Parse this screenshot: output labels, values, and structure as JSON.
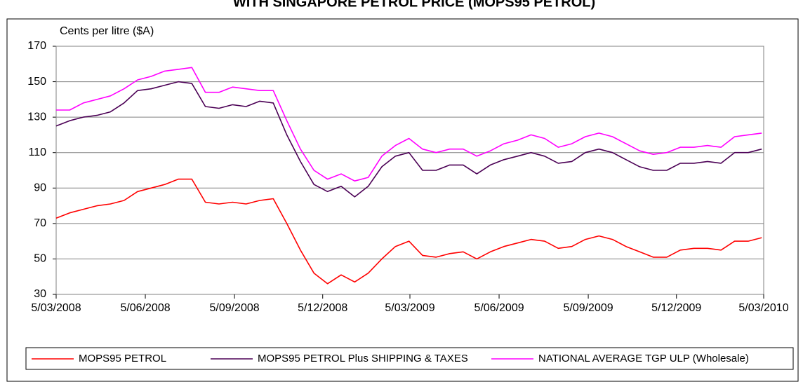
{
  "chart_data": {
    "type": "line",
    "title": "WITH SINGAPORE PETROL PRICE (MOPS95 PETROL)",
    "y_label": "Cents per litre ($A)",
    "x": [
      "2008-03-05",
      "2008-03-19",
      "2008-04-02",
      "2008-04-16",
      "2008-04-30",
      "2008-05-14",
      "2008-05-28",
      "2008-06-11",
      "2008-06-25",
      "2008-07-09",
      "2008-07-23",
      "2008-08-06",
      "2008-08-20",
      "2008-09-03",
      "2008-09-17",
      "2008-10-01",
      "2008-10-15",
      "2008-10-29",
      "2008-11-12",
      "2008-11-26",
      "2008-12-10",
      "2008-12-24",
      "2009-01-07",
      "2009-01-21",
      "2009-02-04",
      "2009-02-18",
      "2009-03-04",
      "2009-03-18",
      "2009-04-01",
      "2009-04-15",
      "2009-04-29",
      "2009-05-13",
      "2009-05-27",
      "2009-06-10",
      "2009-06-24",
      "2009-07-08",
      "2009-07-22",
      "2009-08-05",
      "2009-08-19",
      "2009-09-02",
      "2009-09-16",
      "2009-09-30",
      "2009-10-14",
      "2009-10-28",
      "2009-11-11",
      "2009-11-25",
      "2009-12-09",
      "2009-12-23",
      "2010-01-06",
      "2010-01-20",
      "2010-02-03",
      "2010-02-17",
      "2010-03-03"
    ],
    "series": [
      {
        "name": "MOPS95 PETROL",
        "color": "#ff0000",
        "values": [
          73,
          76,
          78,
          80,
          81,
          83,
          88,
          90,
          92,
          95,
          95,
          82,
          81,
          82,
          81,
          83,
          84,
          70,
          55,
          42,
          36,
          41,
          37,
          42,
          50,
          57,
          60,
          52,
          51,
          53,
          54,
          50,
          54,
          57,
          59,
          61,
          60,
          56,
          57,
          61,
          63,
          61,
          57,
          54,
          51,
          51,
          55,
          56,
          56,
          55,
          60,
          60,
          62
        ]
      },
      {
        "name": "MOPS95 PETROL Plus SHIPPING & TAXES",
        "color": "#4b0055",
        "values": [
          125,
          128,
          130,
          131,
          133,
          138,
          145,
          146,
          148,
          150,
          149,
          136,
          135,
          137,
          136,
          139,
          138,
          120,
          105,
          92,
          88,
          91,
          85,
          91,
          102,
          108,
          110,
          100,
          100,
          103,
          103,
          98,
          103,
          106,
          108,
          110,
          108,
          104,
          105,
          110,
          112,
          110,
          106,
          102,
          100,
          100,
          104,
          104,
          105,
          104,
          110,
          110,
          112
        ]
      },
      {
        "name": "NATIONAL AVERAGE TGP ULP (Wholesale)",
        "color": "#ff00ff",
        "values": [
          134,
          134,
          138,
          140,
          142,
          146,
          151,
          153,
          156,
          157,
          158,
          144,
          144,
          147,
          146,
          145,
          145,
          128,
          112,
          100,
          95,
          98,
          94,
          96,
          108,
          114,
          118,
          112,
          110,
          112,
          112,
          108,
          111,
          115,
          117,
          120,
          118,
          113,
          115,
          119,
          121,
          119,
          115,
          111,
          109,
          110,
          113,
          113,
          114,
          113,
          119,
          120,
          121
        ]
      }
    ],
    "xlim": [
      "2008-03-05",
      "2010-03-05"
    ],
    "xticks": [
      {
        "value": "2008-03-05",
        "label": "5/03/2008"
      },
      {
        "value": "2008-06-05",
        "label": "5/06/2008"
      },
      {
        "value": "2008-09-05",
        "label": "5/09/2008"
      },
      {
        "value": "2008-12-05",
        "label": "5/12/2008"
      },
      {
        "value": "2009-03-05",
        "label": "5/03/2009"
      },
      {
        "value": "2009-06-05",
        "label": "5/06/2009"
      },
      {
        "value": "2009-09-05",
        "label": "5/09/2009"
      },
      {
        "value": "2009-12-05",
        "label": "5/12/2009"
      },
      {
        "value": "2010-03-05",
        "label": "5/03/2010"
      }
    ],
    "ylim": [
      30,
      170
    ],
    "yticks": [
      30,
      50,
      70,
      90,
      110,
      130,
      150,
      170
    ],
    "grid": true,
    "legend": "bottom"
  }
}
